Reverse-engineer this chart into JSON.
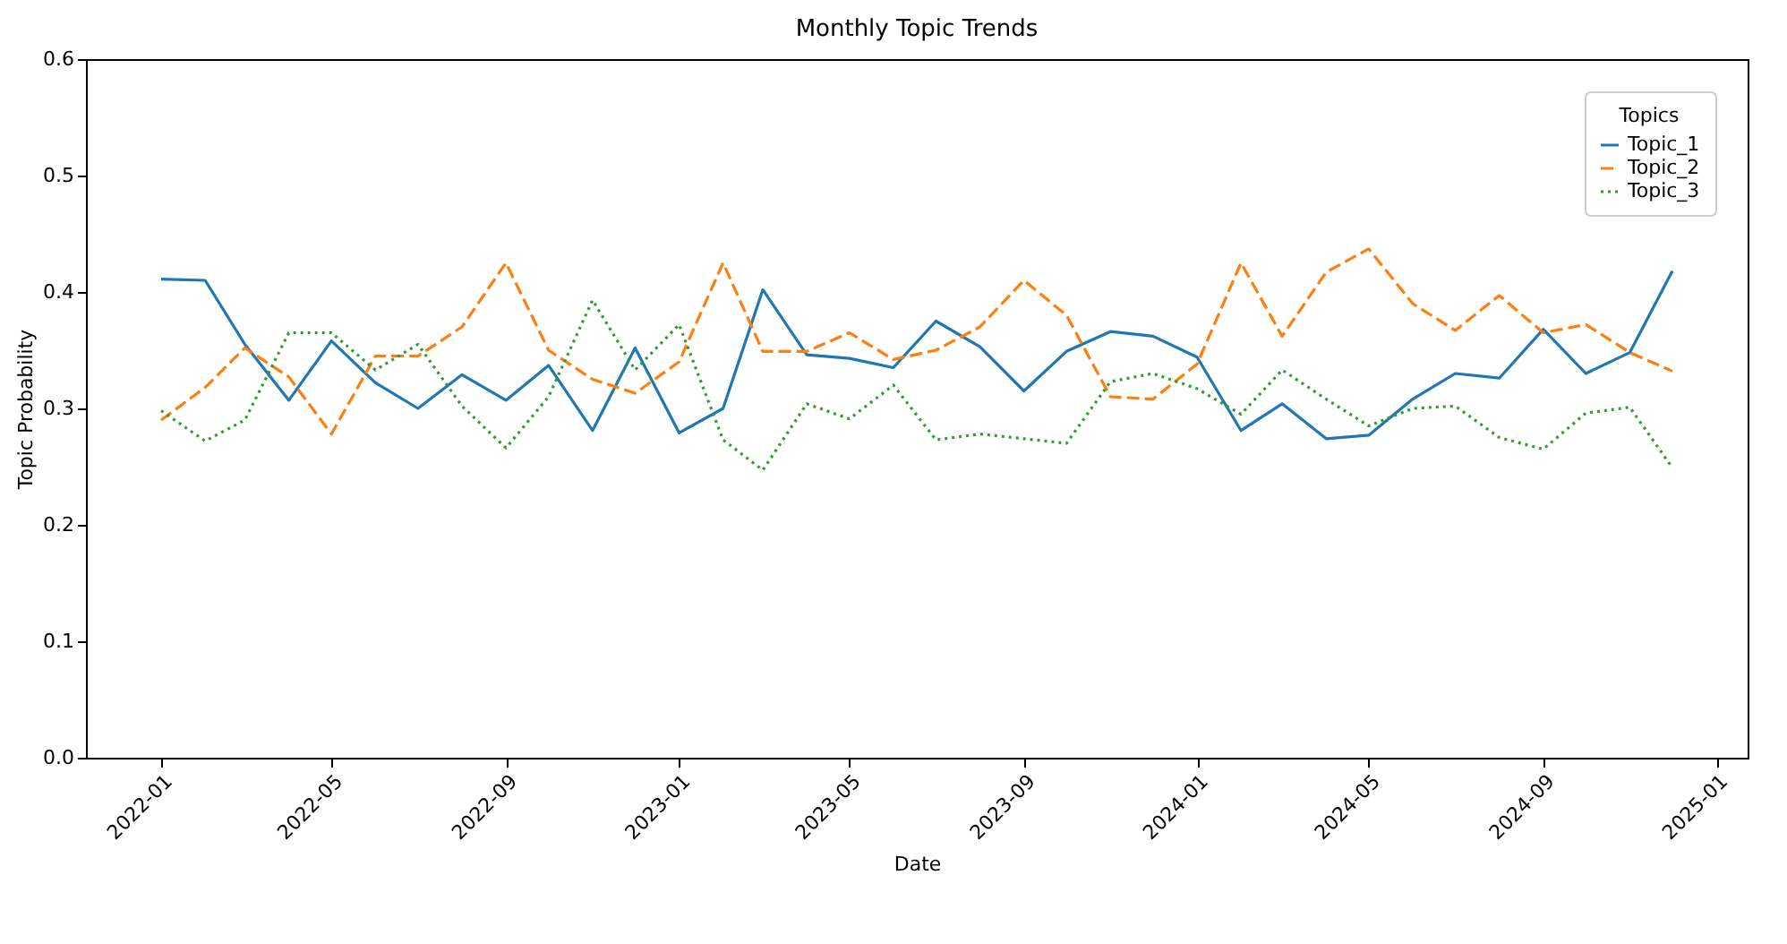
{
  "chart_data": {
    "type": "line",
    "title": "Monthly Topic Trends",
    "xlabel": "Date",
    "ylabel": "Topic Probability",
    "legend_title": "Topics",
    "legend": "top right",
    "grid": false,
    "x": [
      "2022-01",
      "2022-02",
      "2022-03",
      "2022-04",
      "2022-05",
      "2022-06",
      "2022-07",
      "2022-08",
      "2022-09",
      "2022-10",
      "2022-11",
      "2022-12",
      "2023-01",
      "2023-02",
      "2023-03",
      "2023-04",
      "2023-05",
      "2023-06",
      "2023-07",
      "2023-08",
      "2023-09",
      "2023-10",
      "2023-11",
      "2023-12",
      "2024-01",
      "2024-02",
      "2024-03",
      "2024-04",
      "2024-05",
      "2024-06",
      "2024-07",
      "2024-08",
      "2024-09",
      "2024-10",
      "2024-11",
      "2024-12"
    ],
    "xlim": [
      "2021-11-09",
      "2025-01-23"
    ],
    "xticks": [
      "2022-01",
      "2022-05",
      "2022-09",
      "2023-01",
      "2023-05",
      "2023-09",
      "2024-01",
      "2024-05",
      "2024-09",
      "2025-01"
    ],
    "ylim": [
      0,
      0.6
    ],
    "yticks": [
      {
        "value": 0,
        "label": "0.0"
      },
      {
        "value": 0.1,
        "label": "0.1"
      },
      {
        "value": 0.2,
        "label": "0.2"
      },
      {
        "value": 0.3,
        "label": "0.3"
      },
      {
        "value": 0.4,
        "label": "0.4"
      },
      {
        "value": 0.5,
        "label": "0.5"
      },
      {
        "value": 0.6,
        "label": "0.6"
      }
    ],
    "series": [
      {
        "name": "Topic_1",
        "color": "#1f77b4",
        "line_style": "solid",
        "values": [
          0.411,
          0.41,
          0.355,
          0.307,
          0.358,
          0.322,
          0.3,
          0.329,
          0.307,
          0.337,
          0.281,
          0.352,
          0.279,
          0.3,
          0.402,
          0.346,
          0.343,
          0.335,
          0.375,
          0.353,
          0.315,
          0.349,
          0.366,
          0.362,
          0.344,
          0.281,
          0.304,
          0.274,
          0.277,
          0.308,
          0.33,
          0.326,
          0.368,
          0.33,
          0.348,
          0.418
        ]
      },
      {
        "name": "Topic_2",
        "color": "#ff7f0e",
        "line_style": "dashed",
        "values": [
          0.29,
          0.318,
          0.352,
          0.327,
          0.278,
          0.345,
          0.345,
          0.37,
          0.425,
          0.35,
          0.325,
          0.313,
          0.34,
          0.425,
          0.349,
          0.349,
          0.365,
          0.342,
          0.35,
          0.37,
          0.41,
          0.38,
          0.31,
          0.308,
          0.338,
          0.425,
          0.362,
          0.417,
          0.437,
          0.39,
          0.367,
          0.397,
          0.365,
          0.372,
          0.348,
          0.332
        ]
      },
      {
        "name": "Topic_3",
        "color": "#2ca02c",
        "line_style": "dotted",
        "values": [
          0.298,
          0.272,
          0.29,
          0.365,
          0.365,
          0.333,
          0.355,
          0.302,
          0.266,
          0.31,
          0.393,
          0.333,
          0.372,
          0.273,
          0.247,
          0.304,
          0.291,
          0.32,
          0.273,
          0.278,
          0.274,
          0.27,
          0.323,
          0.33,
          0.317,
          0.295,
          0.333,
          0.308,
          0.285,
          0.3,
          0.302,
          0.275,
          0.265,
          0.296,
          0.301,
          0.249
        ]
      }
    ]
  }
}
